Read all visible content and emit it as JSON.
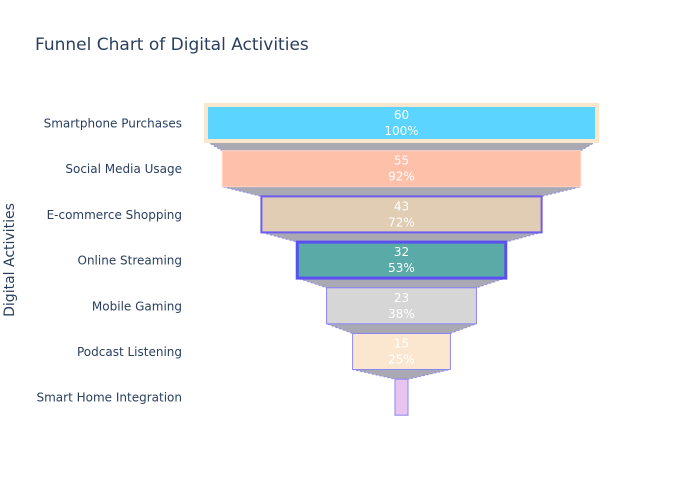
{
  "chart_data": {
    "type": "funnel",
    "title": "Funnel Chart of Digital Activities",
    "ylabel": "Digital Activities",
    "categories": [
      "Smartphone Purchases",
      "Social Media Usage",
      "E-commerce Shopping",
      "Online Streaming",
      "Mobile Gaming",
      "Podcast Listening",
      "Smart Home Integration"
    ],
    "values": [
      60,
      55,
      43,
      32,
      23,
      15,
      2
    ],
    "percent_labels": [
      "100%",
      "92%",
      "72%",
      "53%",
      "38%",
      "25%",
      ""
    ],
    "value_labels": [
      "60",
      "55",
      "43",
      "32",
      "23",
      "15",
      ""
    ],
    "colors": {
      "fills": [
        "#5bd4ff",
        "#ffc0aa",
        "#e1ccb4",
        "#5aaaa8",
        "#d6d6d6",
        "#fbe7d0",
        "#e8c4f0"
      ],
      "outlines": [
        "#f9e6cc",
        "#ffd7c7",
        "#6c5cf0",
        "#5a4ff0",
        "#8c86f2",
        "#8c86f2",
        "#8c86f2"
      ],
      "connector": "#a9a9b4",
      "title": "#2a3f5f",
      "label": "#2a3f5f"
    }
  }
}
